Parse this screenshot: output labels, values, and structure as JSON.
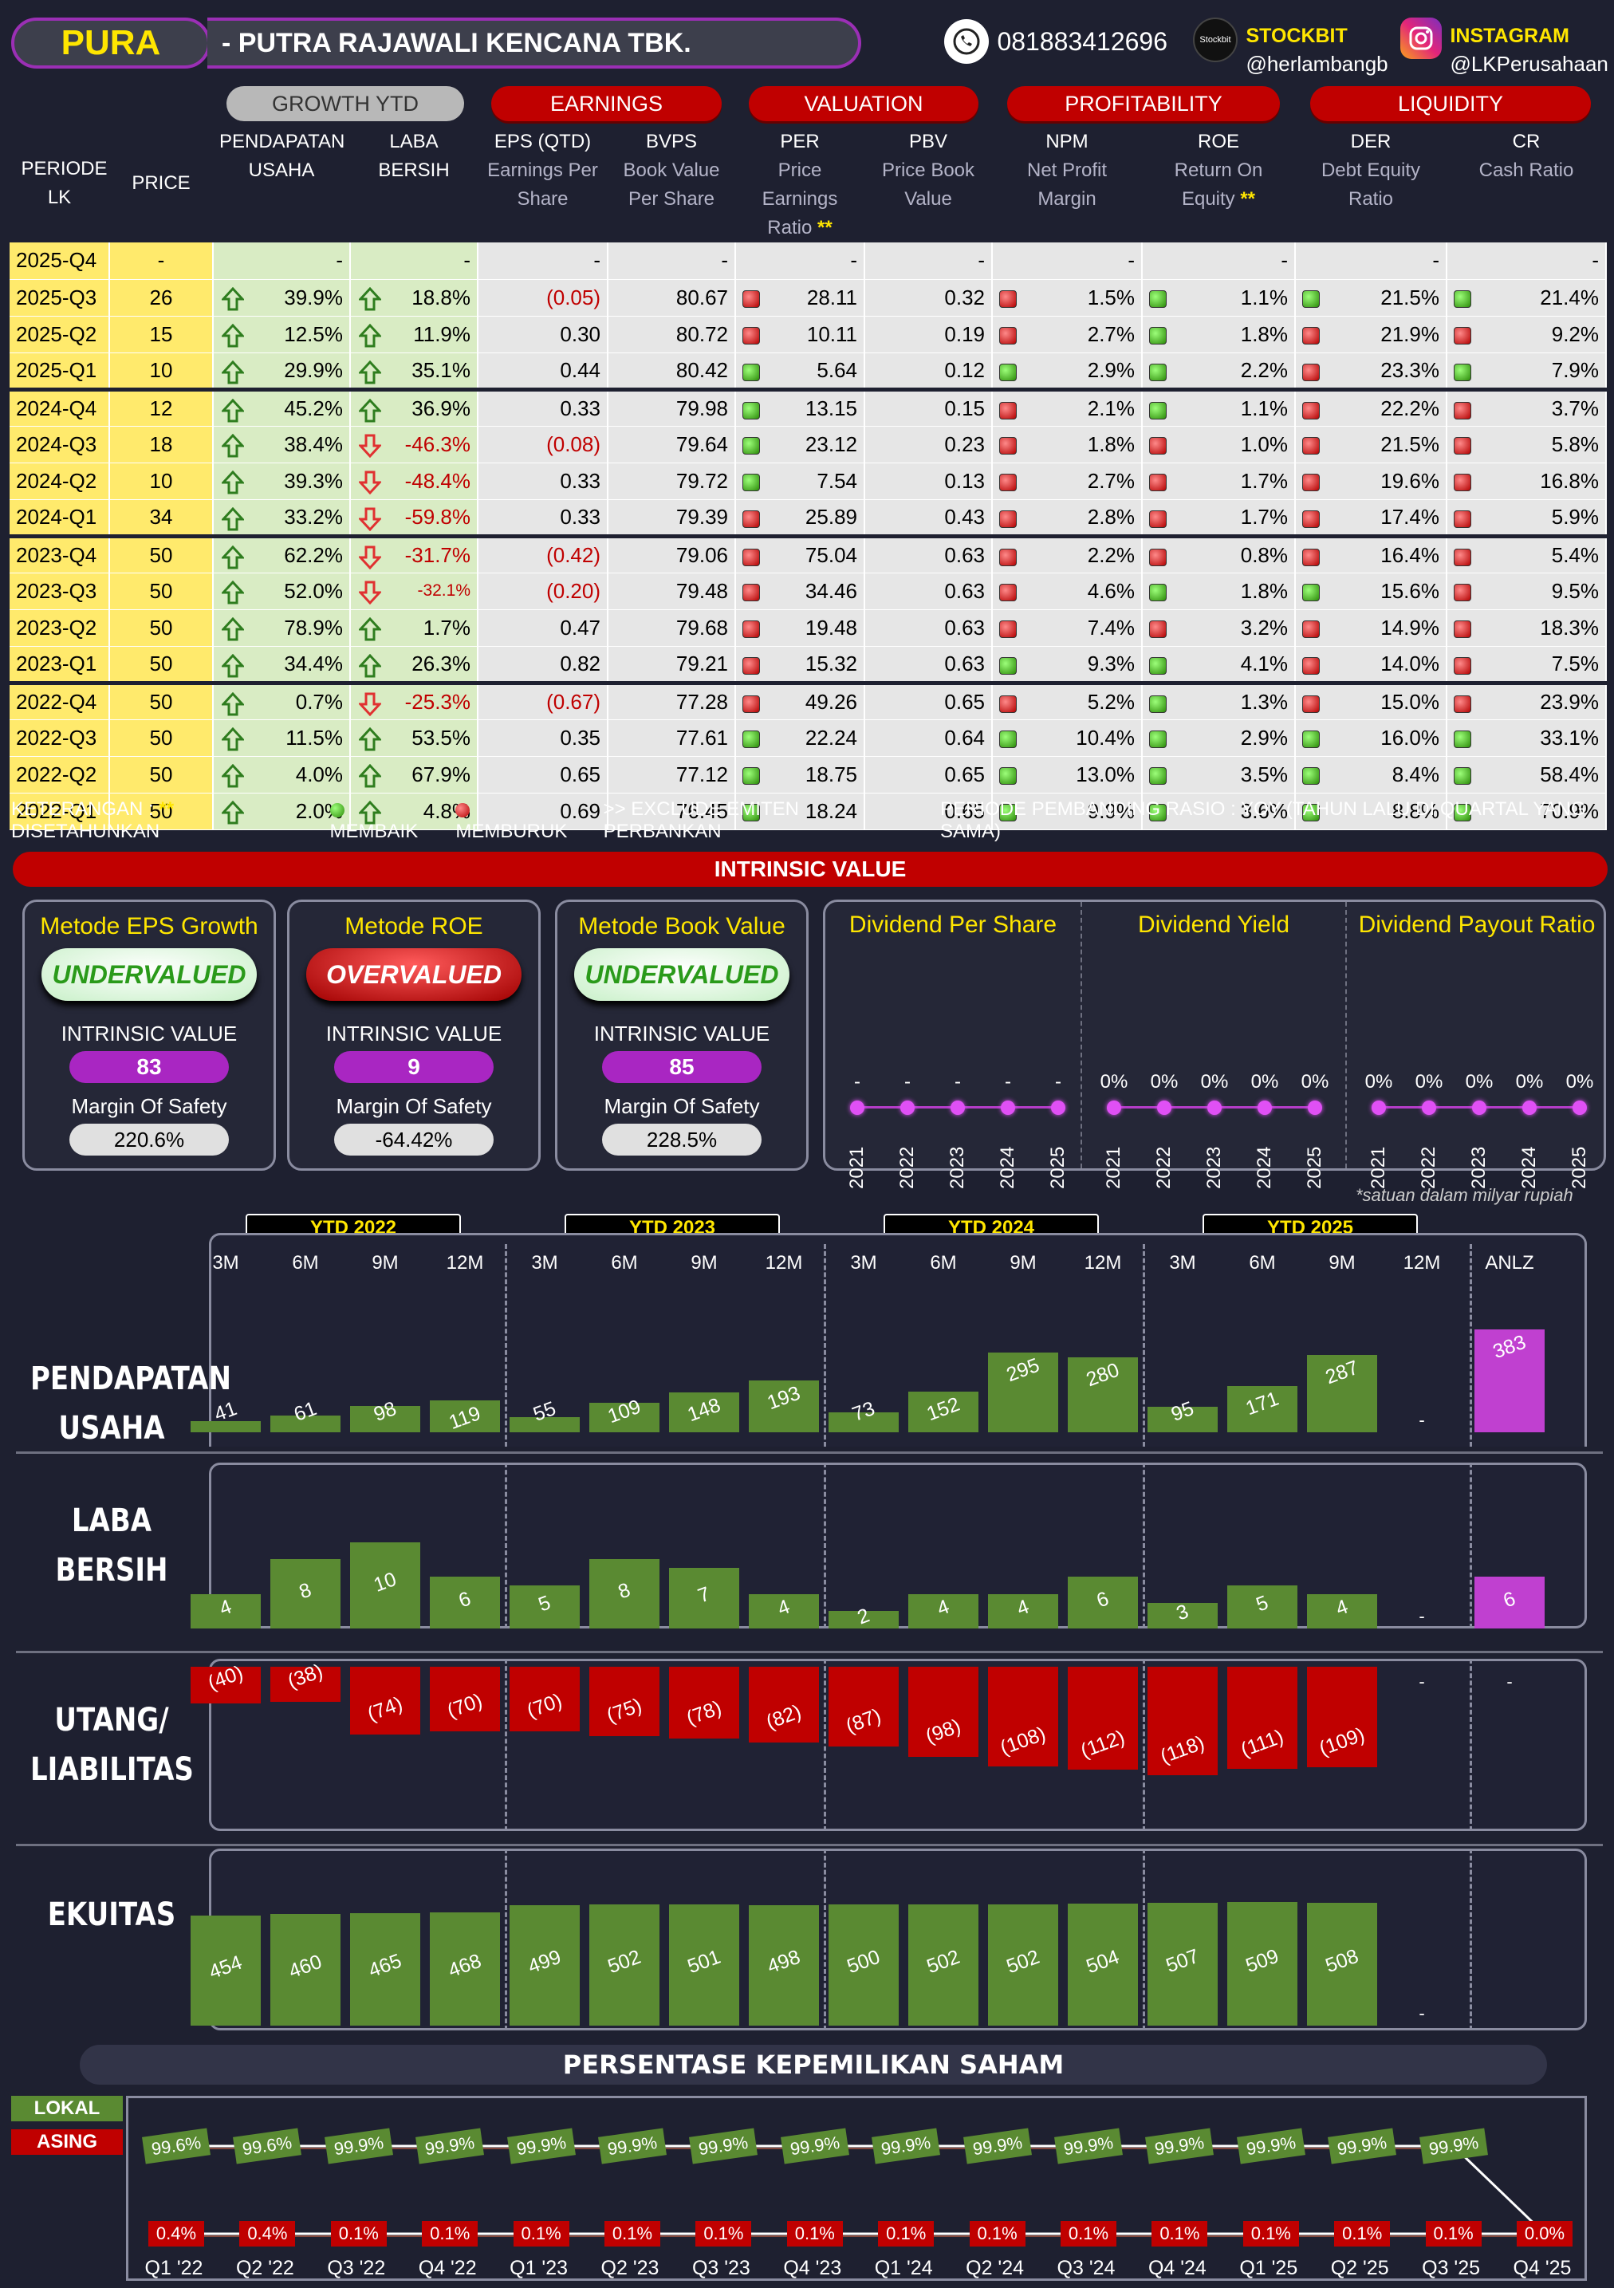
{
  "header": {
    "ticker": "PURA",
    "company": "-  PUTRA RAJAWALI KENCANA TBK.",
    "phone": "081883412696",
    "stockbit_label": "STOCKBIT",
    "stockbit_handle": "@herlambangb",
    "instagram_label": "INSTAGRAM",
    "instagram_handle": "@LKPerusahaan",
    "stockbit_logo_text": "Stockbit"
  },
  "table_header": {
    "periode": "PERIODE LK",
    "price": "PRICE",
    "groups": [
      "GROWTH YTD",
      "EARNINGS",
      "VALUATION",
      "PROFITABILITY",
      "LIQUIDITY"
    ],
    "cols": [
      [
        "PENDAPATAN",
        "USAHA"
      ],
      [
        "LABA",
        "BERSIH"
      ],
      [
        "EPS (QTD)",
        "Earnings Per Share"
      ],
      [
        "BVPS",
        "Book Value Per Share"
      ],
      [
        "PER",
        "Price Earnings Ratio **"
      ],
      [
        "PBV",
        "Price Book Value"
      ],
      [
        "NPM",
        "Net Profit Margin"
      ],
      [
        "ROE",
        "Return On Equity **"
      ],
      [
        "DER",
        "Debt Equity Ratio"
      ],
      [
        "CR",
        "Cash Ratio"
      ]
    ]
  },
  "rows": [
    {
      "p": "2025-Q4",
      "price": "-",
      "rev": "-",
      "rg": "",
      "np": "-",
      "ng": "",
      "eps": "-",
      "bvps": "-",
      "per": "-",
      "perc": "",
      "pbv": "-",
      "npm": "-",
      "npmc": "",
      "roe": "-",
      "roec": "",
      "der": "-",
      "derc": "",
      "cr": "-",
      "crc": ""
    },
    {
      "p": "2025-Q3",
      "price": "26",
      "rev": "39.9%",
      "rg": "up",
      "np": "18.8%",
      "ng": "up",
      "eps": "(0.05)",
      "bvps": "80.67",
      "per": "28.11",
      "perc": "r",
      "pbv": "0.32",
      "npm": "1.5%",
      "npmc": "r",
      "roe": "1.1%",
      "roec": "g",
      "der": "21.5%",
      "derc": "g",
      "cr": "21.4%",
      "crc": "g"
    },
    {
      "p": "2025-Q2",
      "price": "15",
      "rev": "12.5%",
      "rg": "up",
      "np": "11.9%",
      "ng": "up",
      "eps": "0.30",
      "bvps": "80.72",
      "per": "10.11",
      "perc": "r",
      "pbv": "0.19",
      "npm": "2.7%",
      "npmc": "r",
      "roe": "1.8%",
      "roec": "g",
      "der": "21.9%",
      "derc": "r",
      "cr": "9.2%",
      "crc": "r"
    },
    {
      "p": "2025-Q1",
      "price": "10",
      "rev": "29.9%",
      "rg": "up",
      "np": "35.1%",
      "ng": "up",
      "eps": "0.44",
      "bvps": "80.42",
      "per": "5.64",
      "perc": "g",
      "pbv": "0.12",
      "npm": "2.9%",
      "npmc": "g",
      "roe": "2.2%",
      "roec": "g",
      "der": "23.3%",
      "derc": "r",
      "cr": "7.9%",
      "crc": "g"
    },
    {
      "p": "2024-Q4",
      "price": "12",
      "rev": "45.2%",
      "rg": "up",
      "np": "36.9%",
      "ng": "up",
      "eps": "0.33",
      "bvps": "79.98",
      "per": "13.15",
      "perc": "g",
      "pbv": "0.15",
      "npm": "2.1%",
      "npmc": "r",
      "roe": "1.1%",
      "roec": "g",
      "der": "22.2%",
      "derc": "r",
      "cr": "3.7%",
      "crc": "r",
      "sep": true
    },
    {
      "p": "2024-Q3",
      "price": "18",
      "rev": "38.4%",
      "rg": "up",
      "np": "-46.3%",
      "ng": "down",
      "eps": "(0.08)",
      "bvps": "79.64",
      "per": "23.12",
      "perc": "g",
      "pbv": "0.23",
      "npm": "1.8%",
      "npmc": "r",
      "roe": "1.0%",
      "roec": "r",
      "der": "21.5%",
      "derc": "r",
      "cr": "5.8%",
      "crc": "r"
    },
    {
      "p": "2024-Q2",
      "price": "10",
      "rev": "39.3%",
      "rg": "up",
      "np": "-48.4%",
      "ng": "down",
      "eps": "0.33",
      "bvps": "79.72",
      "per": "7.54",
      "perc": "g",
      "pbv": "0.13",
      "npm": "2.7%",
      "npmc": "r",
      "roe": "1.7%",
      "roec": "r",
      "der": "19.6%",
      "derc": "r",
      "cr": "16.8%",
      "crc": "r"
    },
    {
      "p": "2024-Q1",
      "price": "34",
      "rev": "33.2%",
      "rg": "up",
      "np": "-59.8%",
      "ng": "down",
      "eps": "0.33",
      "bvps": "79.39",
      "per": "25.89",
      "perc": "r",
      "pbv": "0.43",
      "npm": "2.8%",
      "npmc": "r",
      "roe": "1.7%",
      "roec": "r",
      "der": "17.4%",
      "derc": "r",
      "cr": "5.9%",
      "crc": "r"
    },
    {
      "p": "2023-Q4",
      "price": "50",
      "rev": "62.2%",
      "rg": "up",
      "np": "-31.7%",
      "ng": "down",
      "eps": "(0.42)",
      "bvps": "79.06",
      "per": "75.04",
      "perc": "r",
      "pbv": "0.63",
      "npm": "2.2%",
      "npmc": "r",
      "roe": "0.8%",
      "roec": "r",
      "der": "16.4%",
      "derc": "r",
      "cr": "5.4%",
      "crc": "r",
      "sep": true
    },
    {
      "p": "2023-Q3",
      "price": "50",
      "rev": "52.0%",
      "rg": "up",
      "np": "-32.1%",
      "ng": "down",
      "small": true,
      "eps": "(0.20)",
      "bvps": "79.48",
      "per": "34.46",
      "perc": "r",
      "pbv": "0.63",
      "npm": "4.6%",
      "npmc": "r",
      "roe": "1.8%",
      "roec": "g",
      "der": "15.6%",
      "derc": "g",
      "cr": "9.5%",
      "crc": "r"
    },
    {
      "p": "2023-Q2",
      "price": "50",
      "rev": "78.9%",
      "rg": "up",
      "np": "1.7%",
      "ng": "up",
      "eps": "0.47",
      "bvps": "79.68",
      "per": "19.48",
      "perc": "r",
      "pbv": "0.63",
      "npm": "7.4%",
      "npmc": "r",
      "roe": "3.2%",
      "roec": "r",
      "der": "14.9%",
      "derc": "r",
      "cr": "18.3%",
      "crc": "r"
    },
    {
      "p": "2023-Q1",
      "price": "50",
      "rev": "34.4%",
      "rg": "up",
      "np": "26.3%",
      "ng": "up",
      "eps": "0.82",
      "bvps": "79.21",
      "per": "15.32",
      "perc": "r",
      "pbv": "0.63",
      "npm": "9.3%",
      "npmc": "g",
      "roe": "4.1%",
      "roec": "g",
      "der": "14.0%",
      "derc": "r",
      "cr": "7.5%",
      "crc": "r"
    },
    {
      "p": "2022-Q4",
      "price": "50",
      "rev": "0.7%",
      "rg": "up",
      "np": "-25.3%",
      "ng": "down",
      "eps": "(0.67)",
      "bvps": "77.28",
      "per": "49.26",
      "perc": "r",
      "pbv": "0.65",
      "npm": "5.2%",
      "npmc": "r",
      "roe": "1.3%",
      "roec": "g",
      "der": "15.0%",
      "derc": "r",
      "cr": "23.9%",
      "crc": "r",
      "sep": true
    },
    {
      "p": "2022-Q3",
      "price": "50",
      "rev": "11.5%",
      "rg": "up",
      "np": "53.5%",
      "ng": "up",
      "eps": "0.35",
      "bvps": "77.61",
      "per": "22.24",
      "perc": "g",
      "pbv": "0.64",
      "npm": "10.4%",
      "npmc": "g",
      "roe": "2.9%",
      "roec": "g",
      "der": "16.0%",
      "derc": "g",
      "cr": "33.1%",
      "crc": "g"
    },
    {
      "p": "2022-Q2",
      "price": "50",
      "rev": "4.0%",
      "rg": "up",
      "np": "67.9%",
      "ng": "up",
      "eps": "0.65",
      "bvps": "77.12",
      "per": "18.75",
      "perc": "g",
      "pbv": "0.65",
      "npm": "13.0%",
      "npmc": "g",
      "roe": "3.5%",
      "roec": "g",
      "der": "8.4%",
      "derc": "g",
      "cr": "58.4%",
      "crc": "g"
    },
    {
      "p": "2022-Q1",
      "price": "50",
      "rev": "2.0%",
      "rg": "up",
      "np": "4.8%",
      "ng": "up",
      "eps": "0.69",
      "bvps": "76.45",
      "per": "18.24",
      "perc": "g",
      "pbv": "0.65",
      "npm": "9.9%",
      "npmc": "g",
      "roe": "3.6%",
      "roec": "g",
      "der": "8.8%",
      "derc": "g",
      "cr": "70.9%",
      "crc": "g"
    }
  ],
  "legend": {
    "keterangan": "KETERANGAN :",
    "stars": "**",
    "disetahunkan": "DISETAHUNKAN",
    "membaik": "MEMBAIK",
    "memburuk": "MEMBURUK",
    "exclude": ">> EXCLUDE EMITEN PERBANKAN",
    "periode": "PERIODE PEMBANDING RASIO : YOY (TAHUN LALU DI QUARTAL YANG SAMA)"
  },
  "intrinsic": {
    "title": "INTRINSIC VALUE",
    "iv_label": "INTRINSIC VALUE",
    "mos_label": "Margin Of Safety",
    "methods": [
      {
        "name": "Metode EPS Growth",
        "verdict": "UNDERVALUED",
        "value": "83",
        "mos": "220.6%"
      },
      {
        "name": "Metode ROE",
        "verdict": "OVERVALUED",
        "value": "9",
        "mos": "-64.42%"
      },
      {
        "name": "Metode Book Value",
        "verdict": "UNDERVALUED",
        "value": "85",
        "mos": "228.5%"
      }
    ]
  },
  "dividend": {
    "years": [
      "2021",
      "2022",
      "2023",
      "2024",
      "2025"
    ],
    "cols": [
      {
        "title": "Dividend Per Share",
        "values": [
          "-",
          "-",
          "-",
          "-",
          "-"
        ]
      },
      {
        "title": "Dividend Yield",
        "values": [
          "0%",
          "0%",
          "0%",
          "0%",
          "0%"
        ]
      },
      {
        "title": "Dividend Payout Ratio",
        "values": [
          "0%",
          "0%",
          "0%",
          "0%",
          "0%"
        ]
      }
    ]
  },
  "footnote": "*satuan dalam milyar rupiah",
  "chart_data": {
    "type": "bar",
    "ytd_groups": [
      "YTD 2022",
      "YTD 2023",
      "YTD 2024",
      "YTD 2025"
    ],
    "categories": [
      "3M",
      "6M",
      "9M",
      "12M",
      "3M",
      "6M",
      "9M",
      "12M",
      "3M",
      "6M",
      "9M",
      "12M",
      "3M",
      "6M",
      "9M",
      "12M",
      "ANLZ"
    ],
    "series": [
      {
        "name": "PENDAPATAN USAHA",
        "labels": [
          "41",
          "61",
          "98",
          "119",
          "55",
          "109",
          "148",
          "193",
          "73",
          "152",
          "295",
          "280",
          "95",
          "171",
          "287",
          "-",
          "383"
        ],
        "values": [
          41,
          61,
          98,
          119,
          55,
          109,
          148,
          193,
          73,
          152,
          295,
          280,
          95,
          171,
          287,
          null,
          383
        ]
      },
      {
        "name": "LABA BERSIH",
        "labels": [
          "4",
          "8",
          "10",
          "6",
          "5",
          "8",
          "7",
          "4",
          "2",
          "4",
          "4",
          "6",
          "3",
          "5",
          "4",
          "-",
          "6"
        ],
        "values": [
          4,
          8,
          10,
          6,
          5,
          8,
          7,
          4,
          2,
          4,
          4,
          6,
          3,
          5,
          4,
          null,
          6
        ]
      },
      {
        "name": "UTANG/ LIABILITAS",
        "labels": [
          "(40)",
          "(38)",
          "(74)",
          "(70)",
          "(70)",
          "(75)",
          "(78)",
          "(82)",
          "(87)",
          "(98)",
          "(108)",
          "(112)",
          "(118)",
          "(111)",
          "(109)",
          "-",
          "-"
        ],
        "values": [
          -40,
          -38,
          -74,
          -70,
          -70,
          -75,
          -78,
          -82,
          -87,
          -98,
          -108,
          -112,
          -118,
          -111,
          -109,
          null,
          null
        ]
      },
      {
        "name": "EKUITAS",
        "labels": [
          "454",
          "460",
          "465",
          "468",
          "499",
          "502",
          "501",
          "498",
          "500",
          "502",
          "502",
          "504",
          "507",
          "509",
          "508",
          "-",
          ""
        ],
        "values": [
          454,
          460,
          465,
          468,
          499,
          502,
          501,
          498,
          500,
          502,
          502,
          504,
          507,
          509,
          508,
          null,
          null
        ]
      }
    ],
    "colors": {
      "positive": "#5a8a32",
      "negative": "#c00000",
      "annualized": "#c040d0"
    }
  },
  "ownership": {
    "title": "PERSENTASE KEPEMILIKAN SAHAM",
    "lokal_label": "LOKAL",
    "asing_label": "ASING",
    "quarters": [
      "Q1 '22",
      "Q2 '22",
      "Q3 '22",
      "Q4 '22",
      "Q1 '23",
      "Q2 '23",
      "Q3 '23",
      "Q4 '23",
      "Q1 '24",
      "Q2 '24",
      "Q3 '24",
      "Q4 '24",
      "Q1 '25",
      "Q2 '25",
      "Q3 '25",
      "Q4 '25"
    ],
    "lokal": [
      "99.6%",
      "99.6%",
      "99.9%",
      "99.9%",
      "99.9%",
      "99.9%",
      "99.9%",
      "99.9%",
      "99.9%",
      "99.9%",
      "99.9%",
      "99.9%",
      "99.9%",
      "99.9%",
      "99.9%",
      ""
    ],
    "asing": [
      "0.4%",
      "0.4%",
      "0.1%",
      "0.1%",
      "0.1%",
      "0.1%",
      "0.1%",
      "0.1%",
      "0.1%",
      "0.1%",
      "0.1%",
      "0.1%",
      "0.1%",
      "0.1%",
      "0.1%",
      "0.0%"
    ]
  }
}
